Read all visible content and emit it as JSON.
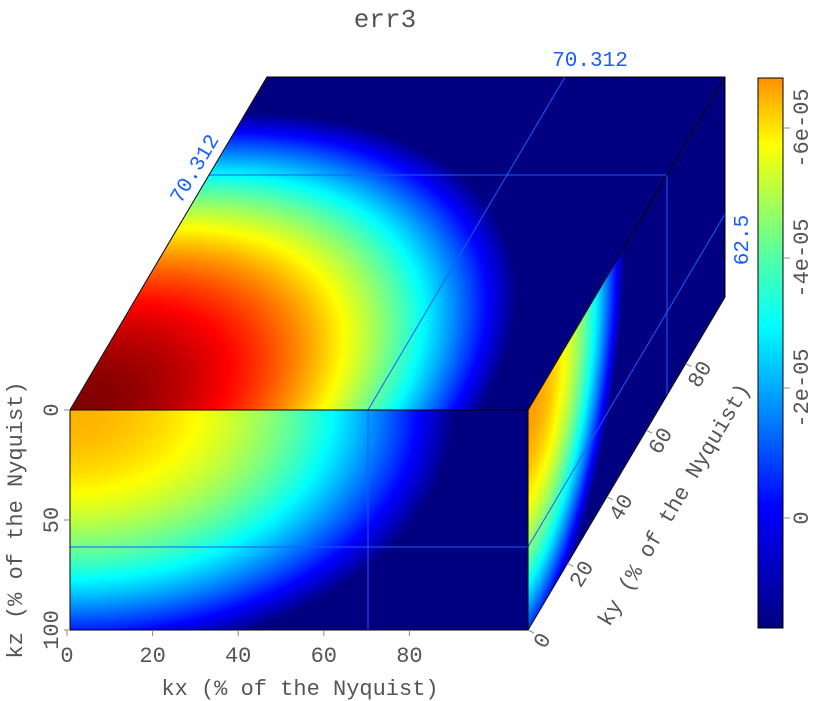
{
  "chart_data": {
    "type": "heatmap",
    "title": "err3",
    "xlabel": "kx (% of the Nyquist)",
    "ylabel": "ky (% of the Nyquist)",
    "zlabel": "kz (% of the Nyquist)",
    "x_ticks": [
      "0",
      "20",
      "40",
      "60",
      "80"
    ],
    "y_ticks": [
      "0",
      "20",
      "40",
      "60",
      "80"
    ],
    "z_ticks": [
      "0",
      "50",
      "100"
    ],
    "xlim": [
      0,
      107.7
    ],
    "ylim": [
      0,
      100
    ],
    "zlim": [
      0,
      100
    ],
    "frame_labels": {
      "kx": "70.312",
      "ky": "70.312",
      "kz": "62.5"
    },
    "frame_values": {
      "kx": 70.312,
      "ky": 70.312,
      "kz": 62.5
    },
    "colorbar": {
      "colormap": "jet",
      "ticks": [
        "-6e-05",
        "-4e-05",
        "-2e-05",
        "0"
      ],
      "tick_values": [
        -6e-05,
        -4e-05,
        -2e-05,
        0
      ],
      "range": [
        -6.8e-05,
        1.7e-05
      ],
      "orientation": "reversed (most negative at top)"
    },
    "colors": {
      "frame_lines": "#1a5cff",
      "labels": "#555555"
    }
  }
}
